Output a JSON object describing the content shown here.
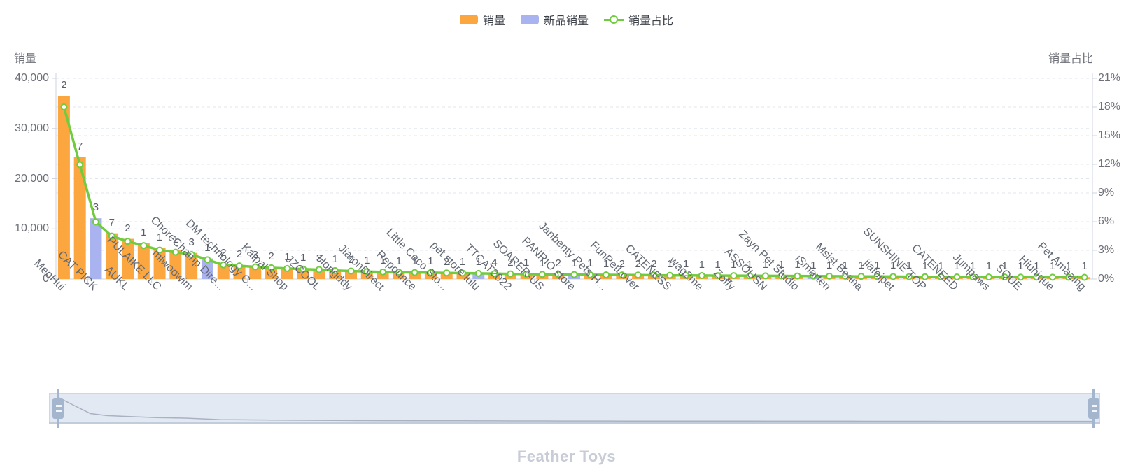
{
  "legend": {
    "items": [
      {
        "label": "销量",
        "type": "bar",
        "color": "#fba63e"
      },
      {
        "label": "新品销量",
        "type": "bar",
        "color": "#a9b3ef"
      },
      {
        "label": "销量占比",
        "type": "line",
        "color": "#70cc3e"
      }
    ]
  },
  "y_axis_left": {
    "name": "销量",
    "tick_labels": [
      "40,000",
      "30,000",
      "20,000",
      "10,000",
      "0"
    ],
    "max": 40000
  },
  "y_axis_right": {
    "name": "销量占比",
    "tick_labels": [
      "21%",
      "18%",
      "15%",
      "12%",
      "9%",
      "6%",
      "3%",
      "0%"
    ],
    "max": 21
  },
  "x_axis": {
    "visible_labels": [
      "MeoHui",
      "CAT PICK",
      "AUKL",
      "PULAIKE LLC",
      "miwoowim",
      "ChoreChamp Dire...",
      "DM technology C...",
      "Katpal Shop",
      "JZCOOL",
      "Hongddy",
      "JiaronDirect",
      "Repounce",
      "Little Coco Sto...",
      "pet store lulu",
      "TTCAT2022",
      "SOARER-US",
      "PANRIO store",
      "Janbenty Pets H...",
      "FunPetLover",
      "CATENESS",
      "wag2me",
      "Zoffy",
      "ASSOUSN",
      "Zayn Pet Studio",
      "iSmarten",
      "Msist Beana",
      "jiafeipet",
      "SUNSHINE TOP",
      "CATENEED",
      "Jumpaws",
      "SQUE",
      "Hiunique",
      "Pet Amazing"
    ],
    "label_every": 2
  },
  "chart_data": {
    "type": "bar+line",
    "category_count": 65,
    "categories_visible": [
      "MeoHui",
      "CAT PICK",
      "AUKL",
      "PULAIKE LLC",
      "miwoowim",
      "ChoreChamp Dire...",
      "DM technology C...",
      "Katpal Shop",
      "JZCOOL",
      "Hongddy",
      "JiaronDirect",
      "Repounce",
      "Little Coco Sto...",
      "pet store lulu",
      "TTCAT2022",
      "SOARER-US",
      "PANRIO store",
      "Janbenty Pets H...",
      "FunPetLover",
      "CATENESS",
      "wag2me",
      "Zoffy",
      "ASSOUSN",
      "Zayn Pet Studio",
      "iSmarten",
      "Msist Beana",
      "jiafeipet",
      "SUNSHINE TOP",
      "CATENEED",
      "Jumpaws",
      "SQUE",
      "Hiunique",
      "Pet Amazing"
    ],
    "series": [
      {
        "name": "销量",
        "type": "bar",
        "axis": "left",
        "color": "#fba63e",
        "values": [
          36500,
          24250,
          12100,
          9100,
          8000,
          7100,
          6150,
          5700,
          5200,
          4100,
          3000,
          2800,
          2600,
          2400,
          2250,
          2100,
          2000,
          1800,
          1700,
          1600,
          1500,
          1450,
          1400,
          1350,
          1300,
          1250,
          1200,
          1150,
          1100,
          1050,
          1000,
          980,
          950,
          920,
          900,
          870,
          850,
          820,
          800,
          780,
          760,
          740,
          720,
          700,
          680,
          660,
          640,
          620,
          600,
          580,
          560,
          540,
          520,
          500,
          480,
          460,
          450,
          440,
          430,
          420,
          410,
          400,
          390,
          380,
          370
        ]
      },
      {
        "name": "新品销量",
        "type": "bar",
        "axis": "left",
        "color": "#a9b3ef",
        "highlight_indices": [
          2,
          9,
          26,
          32,
          47
        ]
      },
      {
        "name": "销量占比",
        "type": "line",
        "axis": "right",
        "color": "#70cc3e",
        "values": [
          18.0,
          11.96,
          5.97,
          4.49,
          3.94,
          3.5,
          3.03,
          2.81,
          2.56,
          2.02,
          1.48,
          1.38,
          1.28,
          1.18,
          1.11,
          1.04,
          0.99,
          0.89,
          0.84,
          0.79,
          0.74,
          0.72,
          0.69,
          0.67,
          0.64,
          0.62,
          0.59,
          0.57,
          0.54,
          0.52,
          0.49,
          0.48,
          0.47,
          0.45,
          0.44,
          0.43,
          0.42,
          0.4,
          0.39,
          0.38,
          0.37,
          0.36,
          0.36,
          0.35,
          0.34,
          0.33,
          0.32,
          0.31,
          0.3,
          0.29,
          0.28,
          0.27,
          0.26,
          0.25,
          0.24,
          0.23,
          0.22,
          0.22,
          0.21,
          0.21,
          0.2,
          0.2,
          0.19,
          0.19,
          0.18
        ]
      }
    ],
    "bar_top_labels": [
      2,
      7,
      3,
      7,
      2,
      1,
      1,
      1,
      3,
      1,
      2,
      2,
      3,
      2,
      1,
      1,
      3,
      1,
      2,
      1,
      1,
      1,
      1,
      1,
      2,
      1,
      1,
      4,
      2,
      1,
      1,
      2,
      1,
      1,
      1,
      2,
      2,
      2,
      1,
      1,
      1,
      1,
      1,
      1,
      1,
      1,
      1,
      1,
      1,
      1,
      1,
      1,
      1,
      1,
      1,
      1,
      1,
      1,
      1,
      1,
      1,
      1,
      1,
      1,
      1
    ],
    "ylim_left": [
      0,
      40000
    ],
    "ylim_right": [
      0,
      21
    ],
    "grid": "dashed-horizontal",
    "legend_position": "top-center"
  },
  "colors": {
    "bar_sales": "#fba63e",
    "bar_new": "#a9b3ef",
    "line_share": "#70cc3e",
    "grid_line": "#e0e5ef",
    "axis_line": "#ccd4e2",
    "axis_text": "#6e7079",
    "value_label_text": "#5a5f6a",
    "slider_bg": "#e2e9f3",
    "slider_handle": "#a3b6ce",
    "slider_profile": "#aab2c2",
    "footer_text": "#c8ccd6"
  },
  "slider": {
    "range_start": "0%",
    "range_end": "100%"
  },
  "footer": {
    "title": "Feather Toys"
  }
}
